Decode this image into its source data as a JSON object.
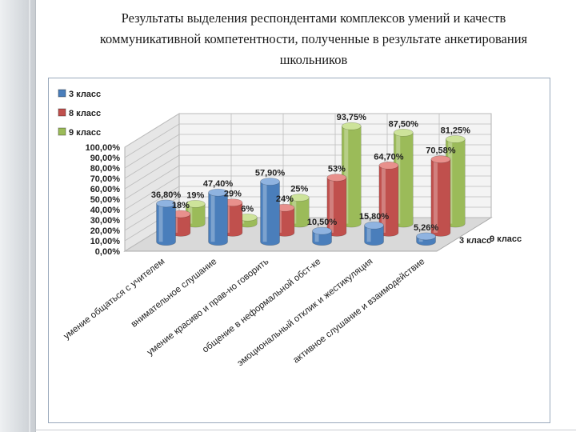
{
  "slide": {
    "title_lines": [
      "Результаты выделения респондентами комплексов умений и качеств",
      "коммуникативной компетентности, полученные в результате анкетирования",
      "школьников"
    ]
  },
  "colors": {
    "series": [
      "#4a7ebb",
      "#c0504d",
      "#9bbb59"
    ],
    "tops": [
      "#8fb3e0",
      "#e8908c",
      "#cde39a"
    ]
  },
  "chart_data": {
    "type": "bar",
    "subtype": "3d-clustered-cylinder",
    "title": "",
    "categories": [
      "умение общаться с учителем",
      "внимательное слушание",
      "умение красиво и прав-но говорить",
      "общение в неформальной обст-ке",
      "эмоциональный отклик и жестикуляция",
      "активное слушание и взаимодействие"
    ],
    "series": [
      {
        "name": "3 класс",
        "values": [
          36.8,
          47.4,
          57.9,
          10.5,
          15.8,
          5.26
        ],
        "labels": [
          "36,80%",
          "47,40%",
          "57,90%",
          "10,50%",
          "15,80%",
          "5,26%"
        ]
      },
      {
        "name": "8 класс",
        "values": [
          18,
          29,
          24,
          53,
          64.7,
          70.58
        ],
        "labels": [
          "18%",
          "29%",
          "24%",
          "53%",
          "64,70%",
          "70,58%"
        ]
      },
      {
        "name": "9 класс",
        "values": [
          19,
          6,
          25,
          93.75,
          87.5,
          81.25
        ],
        "labels": [
          "19%",
          "6%",
          "25%",
          "93,75%",
          "87,50%",
          "81,25%"
        ]
      }
    ],
    "y_ticks": [
      "0,00%",
      "10,00%",
      "20,00%",
      "30,00%",
      "40,00%",
      "50,00%",
      "60,00%",
      "70,00%",
      "80,00%",
      "90,00%",
      "100,00%"
    ],
    "depth_axis_labels": [
      "9 класс",
      "3 класс"
    ],
    "ylim": [
      0,
      100
    ],
    "grid": true,
    "legend_position": "top-left"
  }
}
